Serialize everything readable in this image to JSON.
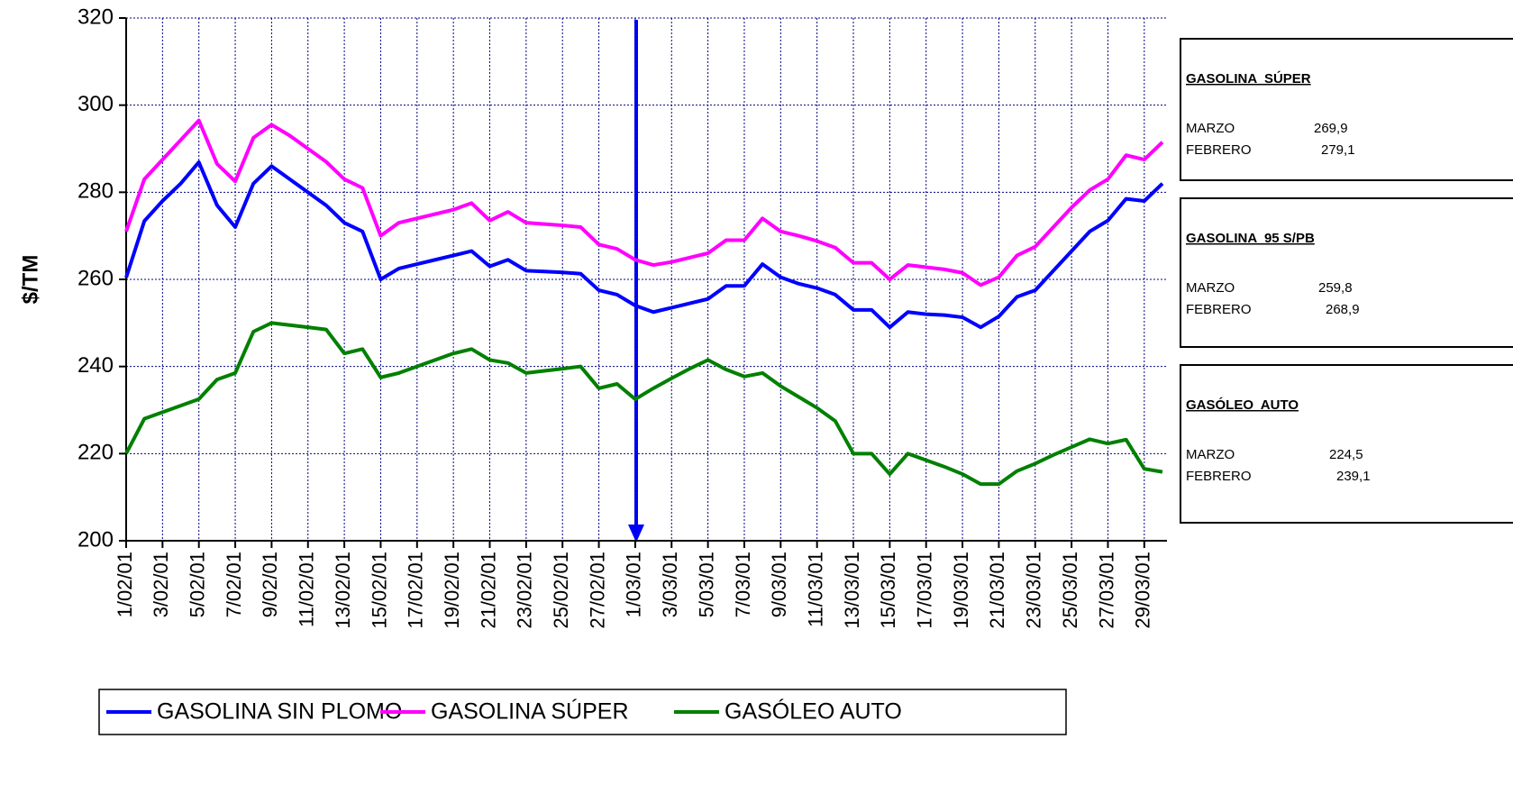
{
  "chart_data": {
    "type": "line",
    "ylabel": "$/TM",
    "categories": [
      "1/02/01",
      null,
      "3/02/01",
      null,
      "5/02/01",
      null,
      "7/02/01",
      null,
      "9/02/01",
      null,
      "11/02/01",
      null,
      "13/02/01",
      null,
      "15/02/01",
      null,
      "17/02/01",
      null,
      "19/02/01",
      null,
      "21/02/01",
      null,
      "23/02/01",
      null,
      "25/02/01",
      null,
      "27/02/01",
      null,
      "1/03/01",
      null,
      "3/03/01",
      null,
      "5/03/01",
      null,
      "7/03/01",
      null,
      "9/03/01",
      null,
      "11/03/01",
      null,
      "13/03/01",
      null,
      "15/03/01",
      null,
      "17/03/01",
      null,
      "19/03/01",
      null,
      "21/03/01",
      null,
      "23/03/01",
      null,
      "25/03/01",
      null,
      "27/03/01",
      null,
      "29/03/01",
      null
    ],
    "series": [
      {
        "name": "GASOLINA SIN PLOMO",
        "color": "#0000ff",
        "values": [
          260.4,
          273.4,
          278,
          282,
          286.9,
          277,
          272,
          282,
          286,
          283,
          280,
          277,
          273,
          271,
          260,
          262.5,
          263.5,
          264.5,
          265.5,
          266.5,
          263,
          264.5,
          262,
          261.8,
          261.6,
          261.3,
          257.5,
          256.5,
          254,
          252.5,
          253.5,
          254.5,
          255.5,
          258.5,
          258.5,
          263.5,
          260.5,
          259,
          258,
          256.5,
          253,
          253,
          249,
          252.5,
          252,
          251.8,
          251.3,
          249,
          251.5,
          256,
          257.5,
          262,
          266.5,
          271,
          273.5,
          278.5,
          278,
          282
        ]
      },
      {
        "name": "GASOLINA SÚPER",
        "color": "#ff00ff",
        "values": [
          271,
          283,
          287.5,
          292,
          296.5,
          286.5,
          282.5,
          292.5,
          295.5,
          293,
          290,
          287,
          283,
          281,
          270,
          273,
          274,
          275,
          276,
          277.5,
          273.5,
          275.5,
          273,
          272.7,
          272.4,
          272,
          268,
          267,
          264.5,
          263.3,
          264,
          265,
          266,
          269,
          269,
          274,
          271,
          270,
          268.8,
          267.3,
          263.8,
          263.8,
          260,
          263.3,
          262.8,
          262.3,
          261.5,
          258.7,
          260.5,
          265.5,
          267.5,
          272,
          276.5,
          280.5,
          283,
          288.5,
          287.5,
          291.5
        ]
      },
      {
        "name": "GASÓLEO AUTO",
        "color": "#008000",
        "values": [
          220,
          228,
          229.5,
          231,
          232.5,
          237,
          238.5,
          248,
          250,
          249.5,
          249,
          248.5,
          243,
          244,
          237.5,
          238.5,
          240,
          241.5,
          243,
          244,
          241.5,
          240.8,
          238.5,
          239,
          239.5,
          240,
          235,
          236,
          232.5,
          235,
          237.3,
          239.5,
          241.5,
          239.3,
          237.7,
          238.5,
          235.5,
          233,
          230.5,
          227.5,
          220,
          220,
          215.3,
          220,
          218.5,
          217,
          215.3,
          213,
          213,
          216,
          217.7,
          219.7,
          221.5,
          223.3,
          222.3,
          223.2,
          216.5,
          215.8
        ]
      }
    ],
    "ylim": [
      200,
      320
    ],
    "yticks": [
      200,
      220,
      240,
      260,
      280,
      300,
      320
    ],
    "grid": true
  },
  "panels": [
    {
      "title": "GASOLINA  SÚPER",
      "rows": [
        [
          "MARZO",
          "269,9"
        ],
        [
          "FEBRERO",
          "279,1"
        ]
      ]
    },
    {
      "title": "GASOLINA  95 S/PB",
      "rows": [
        [
          "MARZO",
          "259,8"
        ],
        [
          "FEBRERO",
          "268,9"
        ]
      ]
    },
    {
      "title": "GASÓLEO  AUTO",
      "rows": [
        [
          "MARZO",
          "224,5"
        ],
        [
          "FEBRERO",
          "239,1"
        ]
      ]
    }
  ]
}
